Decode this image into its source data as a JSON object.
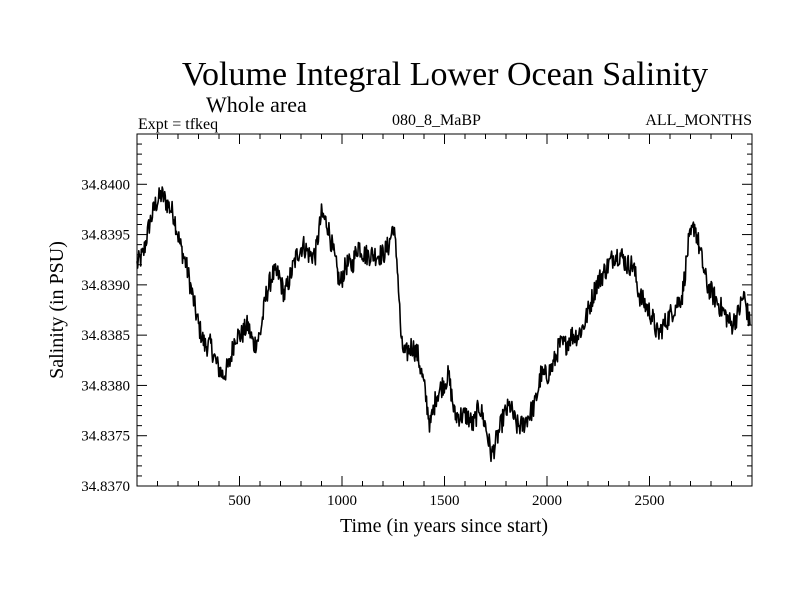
{
  "header": {
    "title": "Volume Integral Lower Ocean Salinity",
    "subtitle": "Whole area",
    "left_label": "Expt = tfkeq",
    "center_label": "080_8_MaBP",
    "right_label": "ALL_MONTHS"
  },
  "chart_data": {
    "type": "line",
    "title": "Volume Integral Lower Ocean Salinity",
    "subtitle": "Whole area",
    "xlabel": "Time (in years since start)",
    "ylabel": "Salinity (in PSU)",
    "xlim": [
      0,
      3000
    ],
    "ylim": [
      34.837,
      34.8405
    ],
    "xticks": [
      500,
      1000,
      1500,
      2000,
      2500
    ],
    "xtick_labels": [
      "500",
      "1000",
      "1500",
      "2000",
      "2500"
    ],
    "yticks": [
      34.837,
      34.8375,
      34.838,
      34.8385,
      34.839,
      34.8395,
      34.84
    ],
    "ytick_labels": [
      "34.8370",
      "34.8375",
      "34.8380",
      "34.8385",
      "34.8390",
      "34.8395",
      "34.8400"
    ],
    "grid": false,
    "line_color": "#000000",
    "series": [
      {
        "x": [
          0,
          30,
          60,
          90,
          120,
          150,
          180,
          210,
          240,
          270,
          300,
          330,
          360,
          390,
          420,
          450,
          480,
          510,
          540,
          570,
          600,
          630,
          660,
          690,
          720,
          750,
          780,
          810,
          840,
          870,
          900,
          930,
          960,
          990,
          1020,
          1050,
          1080,
          1110,
          1140,
          1170,
          1200,
          1230,
          1250,
          1270,
          1290,
          1310,
          1340,
          1370,
          1400,
          1430,
          1460,
          1490,
          1520,
          1550,
          1580,
          1610,
          1640,
          1670,
          1700,
          1730,
          1760,
          1790,
          1820,
          1850,
          1880,
          1910,
          1940,
          1970,
          2000,
          2030,
          2060,
          2090,
          2120,
          2150,
          2180,
          2210,
          2240,
          2270,
          2300,
          2330,
          2360,
          2390,
          2420,
          2450,
          2480,
          2510,
          2540,
          2570,
          2600,
          2630,
          2660,
          2690,
          2720,
          2750,
          2780,
          2810,
          2840,
          2870,
          2900,
          2930,
          2960,
          2990
        ],
        "values": [
          34.8392,
          34.8393,
          34.8396,
          34.8398,
          34.8399,
          34.8398,
          34.8397,
          34.8394,
          34.8392,
          34.8389,
          34.8386,
          34.8384,
          34.8384,
          34.8382,
          34.8381,
          34.8382,
          34.8385,
          34.8385,
          34.8386,
          34.8384,
          34.8385,
          34.8389,
          34.8391,
          34.8391,
          34.8389,
          34.8391,
          34.8393,
          34.8394,
          34.8393,
          34.8393,
          34.8397,
          34.8396,
          34.8393,
          34.839,
          34.8392,
          34.8392,
          34.8394,
          34.8393,
          34.8393,
          34.8393,
          34.8393,
          34.8394,
          34.8396,
          34.8392,
          34.8384,
          34.8383,
          34.8384,
          34.8383,
          34.838,
          34.8376,
          34.8379,
          34.838,
          34.8381,
          34.8377,
          34.8377,
          34.8377,
          34.8376,
          34.8378,
          34.8376,
          34.8373,
          34.8375,
          34.8377,
          34.8378,
          34.8376,
          34.8376,
          34.8377,
          34.8378,
          34.8381,
          34.8381,
          34.8382,
          34.8384,
          34.8384,
          34.8385,
          34.8385,
          34.8386,
          34.8388,
          34.839,
          34.8391,
          34.8392,
          34.8393,
          34.8393,
          34.8392,
          34.8392,
          34.8389,
          34.8388,
          34.8387,
          34.8385,
          34.8386,
          34.8387,
          34.8388,
          34.8389,
          34.8394,
          34.8396,
          34.8393,
          34.839,
          34.8389,
          34.8388,
          34.8387,
          34.8386,
          34.8387,
          34.8389,
          34.8386
        ]
      }
    ]
  }
}
